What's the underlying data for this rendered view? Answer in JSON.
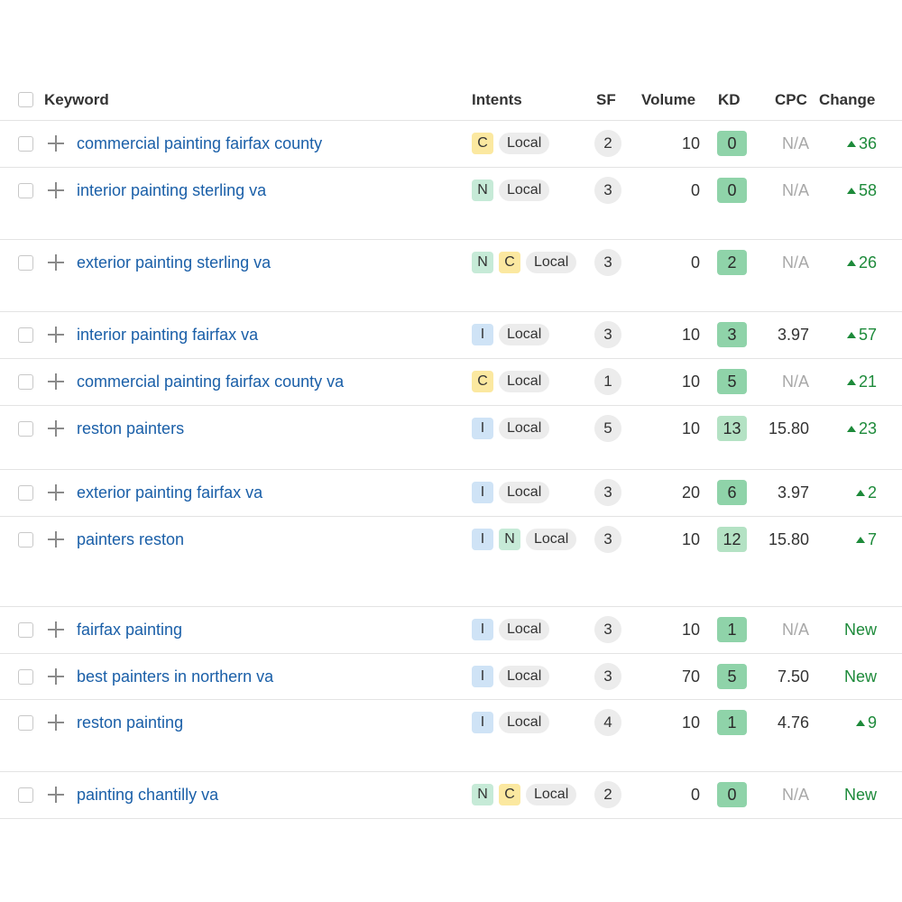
{
  "header": {
    "keyword": "Keyword",
    "intents": "Intents",
    "sf": "SF",
    "volume": "Volume",
    "kd": "KD",
    "cpc": "CPC",
    "change": "Change"
  },
  "colors": {
    "kd_easy": "#8fd3a9",
    "kd_easy_light": "#b4e2c4",
    "link": "#1a5fa8",
    "positive": "#1d8a3a"
  },
  "rows": [
    {
      "keyword": "commercial painting fairfax county",
      "intents": [
        "C"
      ],
      "serp": "Local",
      "sf": "2",
      "volume": "10",
      "kd": "0",
      "cpc": "N/A",
      "change": "36",
      "change_dir": "up"
    },
    {
      "keyword": "interior painting sterling va",
      "intents": [
        "N"
      ],
      "serp": "Local",
      "sf": "3",
      "volume": "0",
      "kd": "0",
      "cpc": "N/A",
      "change": "58",
      "change_dir": "up"
    },
    {
      "keyword": "exterior painting sterling va",
      "intents": [
        "N",
        "C"
      ],
      "serp": "Local",
      "sf": "3",
      "volume": "0",
      "kd": "2",
      "cpc": "N/A",
      "change": "26",
      "change_dir": "up"
    },
    {
      "keyword": "interior painting fairfax va",
      "intents": [
        "I"
      ],
      "serp": "Local",
      "sf": "3",
      "volume": "10",
      "kd": "3",
      "cpc": "3.97",
      "change": "57",
      "change_dir": "up"
    },
    {
      "keyword": "commercial painting fairfax county va",
      "intents": [
        "C"
      ],
      "serp": "Local",
      "sf": "1",
      "volume": "10",
      "kd": "5",
      "cpc": "N/A",
      "change": "21",
      "change_dir": "up"
    },
    {
      "keyword": "reston painters",
      "intents": [
        "I"
      ],
      "serp": "Local",
      "sf": "5",
      "volume": "10",
      "kd": "13",
      "cpc": "15.80",
      "change": "23",
      "change_dir": "up"
    },
    {
      "keyword": "exterior painting fairfax va",
      "intents": [
        "I"
      ],
      "serp": "Local",
      "sf": "3",
      "volume": "20",
      "kd": "6",
      "cpc": "3.97",
      "change": "2",
      "change_dir": "up"
    },
    {
      "keyword": "painters reston",
      "intents": [
        "I",
        "N"
      ],
      "serp": "Local",
      "sf": "3",
      "volume": "10",
      "kd": "12",
      "cpc": "15.80",
      "change": "7",
      "change_dir": "up"
    },
    {
      "keyword": "fairfax painting",
      "intents": [
        "I"
      ],
      "serp": "Local",
      "sf": "3",
      "volume": "10",
      "kd": "1",
      "cpc": "N/A",
      "change": "New",
      "change_dir": "new"
    },
    {
      "keyword": "best painters in northern va",
      "intents": [
        "I"
      ],
      "serp": "Local",
      "sf": "3",
      "volume": "70",
      "kd": "5",
      "cpc": "7.50",
      "change": "New",
      "change_dir": "new"
    },
    {
      "keyword": "reston painting",
      "intents": [
        "I"
      ],
      "serp": "Local",
      "sf": "4",
      "volume": "10",
      "kd": "1",
      "cpc": "4.76",
      "change": "9",
      "change_dir": "up"
    },
    {
      "keyword": "painting chantilly va",
      "intents": [
        "N",
        "C"
      ],
      "serp": "Local",
      "sf": "2",
      "volume": "0",
      "kd": "0",
      "cpc": "N/A",
      "change": "New",
      "change_dir": "new"
    }
  ]
}
